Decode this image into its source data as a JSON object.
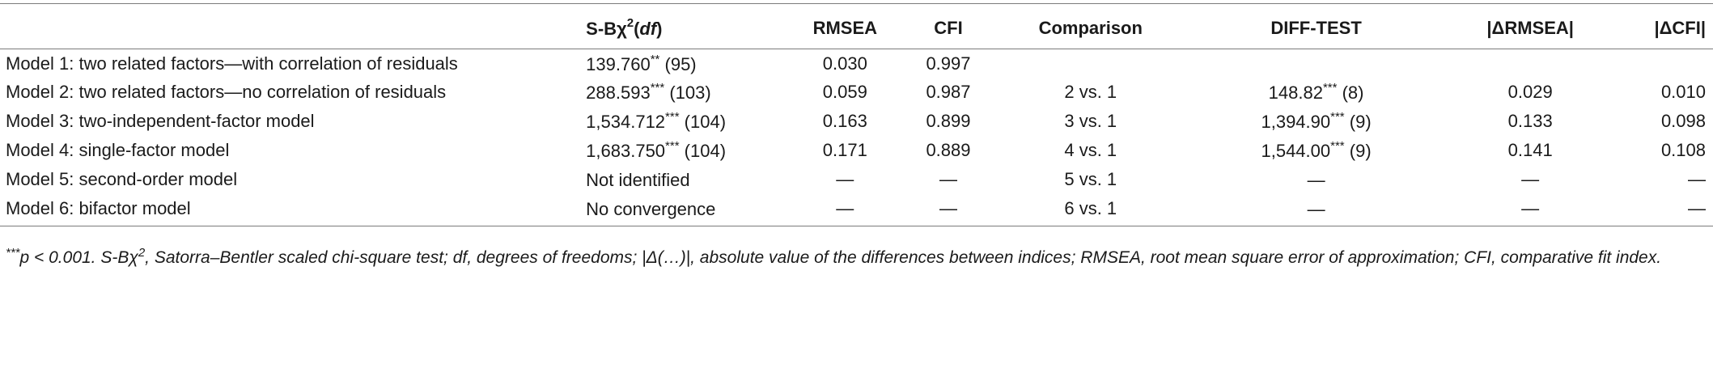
{
  "header": {
    "model": "",
    "sb_prefix": "S-B",
    "sb_chi": "χ",
    "sb_sup": "2",
    "sb_open": "(",
    "sb_df": "df",
    "sb_close": ")",
    "rmsea": "RMSEA",
    "cfi": "CFI",
    "comparison": "Comparison",
    "diff_test": "DIFF-TEST",
    "delta_rmsea": "|ΔRMSEA|",
    "delta_cfi": "|ΔCFI|"
  },
  "rows": [
    {
      "model": "Model 1: two related factors—with correlation of residuals",
      "sb_val": "139.760",
      "sb_stars": "**",
      "sb_df": " (95)",
      "rmsea": "0.030",
      "cfi": "0.997",
      "comparison": "",
      "diff_val": "",
      "diff_stars": "",
      "diff_df": "",
      "delta_rmsea": "",
      "delta_cfi": ""
    },
    {
      "model": "Model 2: two related factors—no correlation of residuals",
      "sb_val": "288.593",
      "sb_stars": "***",
      "sb_df": " (103)",
      "rmsea": "0.059",
      "cfi": "0.987",
      "comparison": "2 vs. 1",
      "diff_val": "148.82",
      "diff_stars": "***",
      "diff_df": " (8)",
      "delta_rmsea": "0.029",
      "delta_cfi": "0.010"
    },
    {
      "model": "Model 3: two-independent-factor model",
      "sb_val": "1,534.712",
      "sb_stars": "***",
      "sb_df": " (104)",
      "rmsea": "0.163",
      "cfi": "0.899",
      "comparison": "3 vs. 1",
      "diff_val": "1,394.90",
      "diff_stars": "***",
      "diff_df": " (9)",
      "delta_rmsea": "0.133",
      "delta_cfi": "0.098"
    },
    {
      "model": "Model 4: single-factor model",
      "sb_val": "1,683.750",
      "sb_stars": "***",
      "sb_df": " (104)",
      "rmsea": "0.171",
      "cfi": "0.889",
      "comparison": "4 vs. 1",
      "diff_val": "1,544.00",
      "diff_stars": "***",
      "diff_df": " (9)",
      "delta_rmsea": "0.141",
      "delta_cfi": "0.108"
    },
    {
      "model": "Model 5: second-order model",
      "sb_val": "Not identified",
      "sb_stars": "",
      "sb_df": "",
      "rmsea": "—",
      "cfi": "—",
      "comparison": "5 vs. 1",
      "diff_val": "—",
      "diff_stars": "",
      "diff_df": "",
      "delta_rmsea": "—",
      "delta_cfi": "—"
    },
    {
      "model": "Model 6: bifactor model",
      "sb_val": "No convergence",
      "sb_stars": "",
      "sb_df": "",
      "rmsea": "—",
      "cfi": "—",
      "comparison": "6 vs. 1",
      "diff_val": "—",
      "diff_stars": "",
      "diff_df": "",
      "delta_rmsea": "—",
      "delta_cfi": "—"
    }
  ],
  "footnote": {
    "stars": "***",
    "p_text": "p < 0.001. S-B",
    "chi": "χ",
    "chi_sup": "2",
    "rest": ", Satorra–Bentler scaled chi-square test; df, degrees of freedoms; |Δ(…)|, absolute value of the differences between indices; RMSEA, root mean square error of approximation; CFI, comparative fit index."
  }
}
